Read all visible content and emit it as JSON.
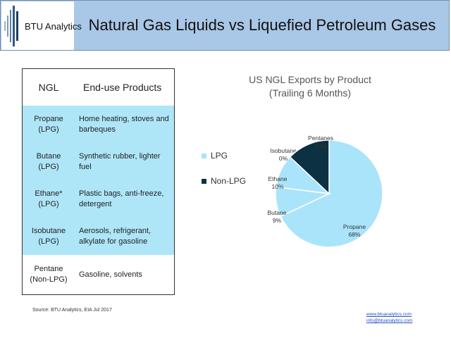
{
  "header": {
    "logo_text": "BTU Analytics",
    "title": "Natural Gas Liquids vs Liquefied Petroleum Gases"
  },
  "table": {
    "col_ngl": "NGL",
    "col_products": "End-use Products",
    "rows": [
      {
        "ngl": "Propane\n(LPG)",
        "products": "Home heating, stoves and barbeques",
        "highlight": true
      },
      {
        "ngl": "Butane\n(LPG)",
        "products": "Synthetic rubber, lighter fuel",
        "highlight": true
      },
      {
        "ngl": "Ethane*\n(LPG)",
        "products": "Plastic bags, anti-freeze, detergent",
        "highlight": true
      },
      {
        "ngl": "Isobutane\n(LPG)",
        "products": "Aerosols, refrigerant, alkylate for gasoline",
        "highlight": true
      },
      {
        "ngl": "Pentane\n(Non-LPG)",
        "products": "Gasoline, solvents",
        "highlight": false
      }
    ]
  },
  "legend": [
    {
      "label": "LPG",
      "color": "#a9e4fb"
    },
    {
      "label": "Non-LPG",
      "color": "#0b3142"
    }
  ],
  "chart_data": {
    "type": "pie",
    "title": "US NGL Exports by Product",
    "subtitle": "(Trailing 6 Months)",
    "slices": [
      {
        "label": "Propane",
        "value": 68,
        "value_label": "68%",
        "group": "LPG",
        "color": "#a9e4fb"
      },
      {
        "label": "Butane",
        "value": 9,
        "value_label": "9%",
        "group": "LPG",
        "color": "#a9e4fb"
      },
      {
        "label": "Ethane",
        "value": 10,
        "value_label": "10%",
        "group": "LPG",
        "color": "#a9e4fb"
      },
      {
        "label": "Isobutane",
        "value": 0,
        "value_label": "0%",
        "group": "LPG",
        "color": "#a9e4fb"
      },
      {
        "label": "Pentanes",
        "value": 13,
        "value_label": "13%",
        "group": "Non-LPG",
        "color": "#0b3142"
      }
    ]
  },
  "footer": {
    "source": "Source: BTU Analytics, EIA Jul 2017",
    "website": "www.btuanalytics.com",
    "email": "info@btuanalytics.com"
  }
}
